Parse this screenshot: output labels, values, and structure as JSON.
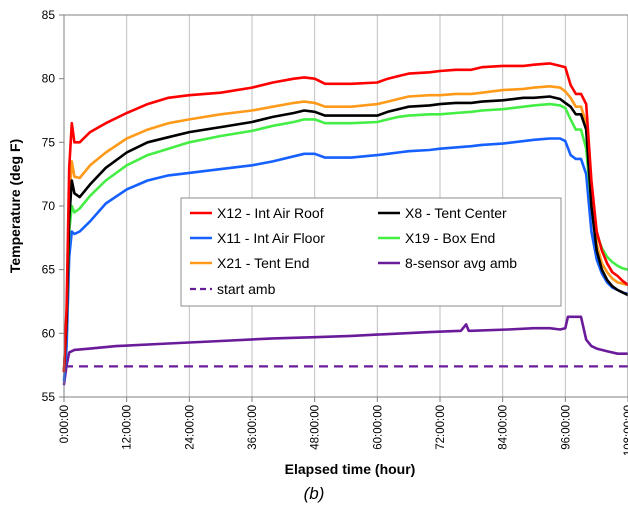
{
  "chart_data": {
    "type": "line",
    "xlabel": "Elapsed time (hour)",
    "ylabel": "Temperature (deg F)",
    "xlim": [
      0,
      108
    ],
    "ylim": [
      55,
      85
    ],
    "x_ticks": [
      0,
      12,
      24,
      36,
      48,
      60,
      72,
      84,
      96,
      108
    ],
    "x_tick_labels": [
      "0:00:00",
      "12:00:00",
      "24:00:00",
      "36:00:00",
      "48:00:00",
      "60:00:00",
      "72:00:00",
      "84:00:00",
      "96:00:00",
      "108:00:00"
    ],
    "y_ticks": [
      55,
      60,
      65,
      70,
      75,
      80,
      85
    ],
    "y_tick_labels": [
      "55",
      "60",
      "65",
      "70",
      "75",
      "80",
      "85"
    ],
    "grid": "vertical",
    "legend_position": "center",
    "series": [
      {
        "name": "X12 - Int Air Roof",
        "color": "#ff0000",
        "dash": "solid",
        "x": [
          0,
          0.5,
          1,
          1.5,
          2,
          3,
          5,
          8,
          12,
          16,
          20,
          24,
          30,
          36,
          40,
          44,
          46,
          48,
          50,
          55,
          60,
          62,
          64,
          66,
          70,
          72,
          75,
          78,
          80,
          84,
          88,
          90,
          93,
          95,
          96,
          97,
          98,
          99,
          100,
          101,
          102,
          103,
          104,
          105,
          106,
          107,
          108
        ],
        "y": [
          57,
          62,
          73,
          76.5,
          75,
          75,
          75.8,
          76.5,
          77.3,
          78,
          78.5,
          78.7,
          78.9,
          79.3,
          79.7,
          80,
          80.1,
          80,
          79.6,
          79.6,
          79.7,
          80,
          80.2,
          80.4,
          80.5,
          80.6,
          80.7,
          80.7,
          80.9,
          81,
          81,
          81.1,
          81.2,
          81,
          80.9,
          79.5,
          78.8,
          78.8,
          78,
          72,
          68,
          66.5,
          65.5,
          64.8,
          64.5,
          64.1,
          63.8
        ]
      },
      {
        "name": "X8 - Tent Center",
        "color": "#000000",
        "dash": "solid",
        "x": [
          0,
          0.5,
          1,
          1.5,
          2,
          3,
          5,
          8,
          12,
          16,
          20,
          24,
          30,
          36,
          40,
          44,
          46,
          48,
          50,
          55,
          60,
          62,
          64,
          66,
          70,
          72,
          75,
          78,
          80,
          84,
          88,
          90,
          93,
          95,
          96,
          97,
          98,
          99,
          100,
          101,
          102,
          103,
          104,
          105,
          106,
          107,
          108
        ],
        "y": [
          57,
          61,
          69,
          72,
          71,
          70.7,
          71.7,
          73,
          74.2,
          75,
          75.4,
          75.8,
          76.2,
          76.6,
          77,
          77.3,
          77.5,
          77.4,
          77.1,
          77.1,
          77.1,
          77.4,
          77.6,
          77.8,
          77.9,
          78,
          78.1,
          78.1,
          78.2,
          78.3,
          78.5,
          78.5,
          78.6,
          78.4,
          78.1,
          77.8,
          77.2,
          77.2,
          76,
          70,
          66.5,
          65,
          64.2,
          63.7,
          63.4,
          63.2,
          63
        ]
      },
      {
        "name": "X11 - Int Air Floor",
        "color": "#1560ff",
        "dash": "solid",
        "x": [
          0,
          0.5,
          1,
          1.5,
          2,
          3,
          5,
          8,
          12,
          16,
          20,
          24,
          30,
          36,
          40,
          44,
          46,
          48,
          50,
          55,
          60,
          62,
          64,
          66,
          70,
          72,
          75,
          78,
          80,
          84,
          88,
          90,
          93,
          95,
          96,
          97,
          98,
          99,
          100,
          101,
          102,
          103,
          104,
          105,
          106,
          107,
          108
        ],
        "y": [
          56.3,
          59,
          66,
          68,
          67.8,
          68,
          68.8,
          70.2,
          71.3,
          72,
          72.4,
          72.6,
          72.9,
          73.2,
          73.5,
          73.9,
          74.1,
          74.1,
          73.8,
          73.8,
          74,
          74.1,
          74.2,
          74.3,
          74.4,
          74.5,
          74.6,
          74.7,
          74.8,
          74.9,
          75.1,
          75.2,
          75.3,
          75.3,
          75.1,
          74,
          73.7,
          73.7,
          72.5,
          68,
          65.8,
          64.7,
          64,
          63.6,
          63.4,
          63.2,
          63.1
        ]
      },
      {
        "name": "X19 - Box End",
        "color": "#44ee44",
        "dash": "solid",
        "x": [
          0,
          0.5,
          1,
          1.5,
          2,
          3,
          5,
          8,
          12,
          16,
          20,
          24,
          30,
          36,
          40,
          44,
          46,
          48,
          50,
          55,
          60,
          62,
          64,
          66,
          70,
          72,
          75,
          78,
          80,
          84,
          88,
          90,
          93,
          95,
          96,
          97,
          98,
          99,
          100,
          101,
          102,
          103,
          104,
          105,
          106,
          107,
          108
        ],
        "y": [
          57,
          61,
          68,
          70,
          69.5,
          69.8,
          70.8,
          72,
          73.2,
          74,
          74.5,
          75,
          75.5,
          75.9,
          76.3,
          76.6,
          76.8,
          76.8,
          76.5,
          76.5,
          76.6,
          76.8,
          77,
          77.1,
          77.2,
          77.2,
          77.3,
          77.4,
          77.5,
          77.6,
          77.8,
          77.9,
          78,
          77.9,
          77.7,
          76.8,
          76,
          76,
          74.5,
          70,
          67.8,
          66.7,
          66,
          65.6,
          65.3,
          65.1,
          65
        ]
      },
      {
        "name": "X21 - Tent End",
        "color": "#ff9a1a",
        "dash": "solid",
        "x": [
          0,
          0.5,
          1,
          1.5,
          2,
          3,
          5,
          8,
          12,
          16,
          20,
          24,
          30,
          36,
          40,
          44,
          46,
          48,
          50,
          55,
          60,
          62,
          64,
          66,
          70,
          72,
          75,
          78,
          80,
          84,
          88,
          90,
          93,
          95,
          96,
          97,
          98,
          99,
          100,
          101,
          102,
          103,
          104,
          105,
          106,
          107,
          108
        ],
        "y": [
          57,
          61,
          70.5,
          73.5,
          72.3,
          72.2,
          73.2,
          74.2,
          75.3,
          76,
          76.5,
          76.8,
          77.2,
          77.5,
          77.8,
          78.1,
          78.2,
          78.1,
          77.8,
          77.8,
          78,
          78.2,
          78.4,
          78.6,
          78.7,
          78.7,
          78.8,
          78.8,
          78.9,
          79.1,
          79.2,
          79.3,
          79.4,
          79.3,
          79,
          78.5,
          77.8,
          77.8,
          76.5,
          71,
          67,
          65.5,
          64.8,
          64.3,
          64,
          63.9,
          63.8
        ]
      },
      {
        "name": "8-sensor avg amb",
        "color": "#6a1b9a",
        "dash": "solid",
        "x": [
          0,
          0.5,
          1,
          2,
          5,
          10,
          20,
          30,
          40,
          48,
          55,
          60,
          70,
          76,
          77,
          77.5,
          78,
          85,
          90,
          93,
          95,
          96,
          96.5,
          98,
          99,
          100,
          101,
          102,
          104,
          106,
          108
        ],
        "y": [
          56,
          57.5,
          58.5,
          58.7,
          58.8,
          59,
          59.2,
          59.4,
          59.6,
          59.7,
          59.8,
          59.9,
          60.1,
          60.2,
          60.7,
          60.2,
          60.2,
          60.3,
          60.4,
          60.4,
          60.3,
          60.4,
          61.3,
          61.3,
          61.3,
          59.5,
          59,
          58.8,
          58.6,
          58.4,
          58.4
        ]
      },
      {
        "name": "start amb",
        "color": "#6a1b9a",
        "dash": "dashed",
        "x": [
          0,
          108
        ],
        "y": [
          57.4,
          57.4
        ]
      }
    ]
  },
  "caption": "(b)"
}
